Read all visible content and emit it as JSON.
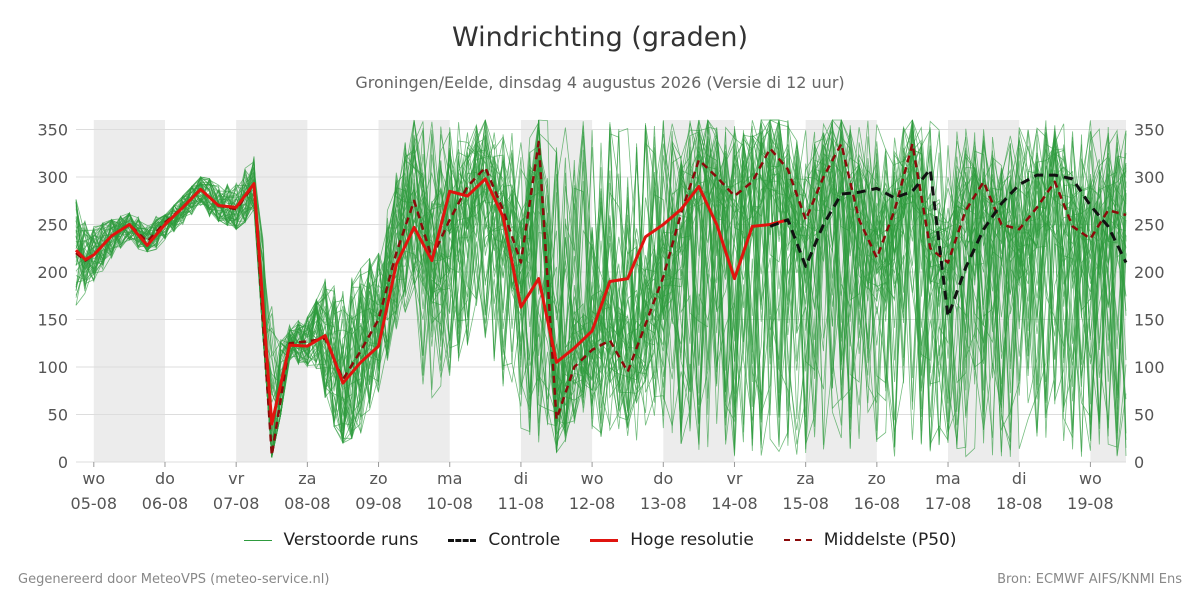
{
  "title": "Windrichting (graden)",
  "subtitle": "Groningen/Eelde, dinsdag  4 augustus 2026 (Versie di 12 uur)",
  "footer": {
    "left": "Gegenereerd door MeteoVPS (meteo-service.nl)",
    "right": "Bron: ECMWF AIFS/KNMI Ens"
  },
  "legend": {
    "ensemble": "Verstoorde runs",
    "control": "Controle",
    "highres": "Hoge resolutie",
    "median": "Middelste (P50)"
  },
  "colors": {
    "ensemble": "#2e9b3e",
    "control": "#111111",
    "highres": "#e0140f",
    "median": "#8b0a0a",
    "night_band": "#ececec",
    "grid": "#dddddd"
  },
  "chart_data": {
    "type": "line",
    "x_unit": "days since 5 Aug 2026 (tick = midnight start of day label)",
    "xlim": [
      -0.25,
      14.5
    ],
    "ylim": [
      0,
      360
    ],
    "yticks": [
      0,
      50,
      100,
      150,
      200,
      250,
      300,
      350
    ],
    "xticks": [
      {
        "x": 0,
        "day": "wo",
        "date": "05-08"
      },
      {
        "x": 1,
        "day": "do",
        "date": "06-08"
      },
      {
        "x": 2,
        "day": "vr",
        "date": "07-08"
      },
      {
        "x": 3,
        "day": "za",
        "date": "08-08"
      },
      {
        "x": 4,
        "day": "zo",
        "date": "09-08"
      },
      {
        "x": 5,
        "day": "ma",
        "date": "10-08"
      },
      {
        "x": 6,
        "day": "di",
        "date": "11-08"
      },
      {
        "x": 7,
        "day": "wo",
        "date": "12-08"
      },
      {
        "x": 8,
        "day": "do",
        "date": "13-08"
      },
      {
        "x": 9,
        "day": "vr",
        "date": "14-08"
      },
      {
        "x": 10,
        "day": "za",
        "date": "15-08"
      },
      {
        "x": 11,
        "day": "zo",
        "date": "16-08"
      },
      {
        "x": 12,
        "day": "ma",
        "date": "17-08"
      },
      {
        "x": 13,
        "day": "di",
        "date": "18-08"
      },
      {
        "x": 14,
        "day": "wo",
        "date": "19-08"
      }
    ],
    "shaded_bands": [
      [
        0,
        1
      ],
      [
        2,
        3
      ],
      [
        4,
        5
      ],
      [
        6,
        7
      ],
      [
        8,
        9
      ],
      [
        10,
        11
      ],
      [
        12,
        13
      ],
      [
        14,
        14.5
      ]
    ],
    "series": [
      {
        "name": "Hoge resolutie",
        "x": [
          -0.25,
          -0.12,
          0.0,
          0.25,
          0.5,
          0.75,
          1.0,
          1.25,
          1.5,
          1.75,
          2.0,
          2.25,
          2.5,
          2.75,
          3.0,
          3.25,
          3.5,
          3.75,
          4.0,
          4.25,
          4.5,
          4.75,
          5.0,
          5.25,
          5.5,
          5.75,
          6.0,
          6.25,
          6.5,
          6.75,
          7.0,
          7.25,
          7.5,
          7.75,
          8.0,
          8.25,
          8.5,
          8.75,
          9.0,
          9.25,
          9.5,
          9.75
        ],
        "y": [
          223,
          213,
          218,
          238,
          250,
          228,
          250,
          268,
          287,
          270,
          268,
          293,
          40,
          123,
          122,
          133,
          83,
          105,
          122,
          208,
          247,
          212,
          285,
          280,
          298,
          258,
          163,
          193,
          105,
          120,
          138,
          190,
          193,
          237,
          250,
          266,
          290,
          250,
          193,
          248,
          250,
          255
        ]
      },
      {
        "name": "Controle",
        "x": [
          9.5,
          9.75,
          10.0,
          10.25,
          10.5,
          10.75,
          11.0,
          11.25,
          11.5,
          11.75,
          12.0,
          12.25,
          12.5,
          12.75,
          13.0,
          13.25,
          13.5,
          13.75,
          14.0,
          14.25,
          14.5
        ],
        "y": [
          248,
          255,
          206,
          250,
          282,
          284,
          288,
          278,
          285,
          308,
          153,
          205,
          245,
          272,
          292,
          302,
          302,
          298,
          270,
          248,
          210
        ]
      },
      {
        "name": "Middelste (P50)",
        "x": [
          -0.25,
          -0.12,
          0.0,
          0.25,
          0.5,
          0.75,
          1.0,
          1.25,
          1.5,
          1.75,
          2.0,
          2.25,
          2.5,
          2.75,
          3.0,
          3.25,
          3.5,
          3.75,
          4.0,
          4.25,
          4.5,
          4.75,
          5.0,
          5.25,
          5.5,
          5.75,
          6.0,
          6.25,
          6.5,
          6.75,
          7.0,
          7.25,
          7.5,
          7.75,
          8.0,
          8.25,
          8.5,
          8.75,
          9.0,
          9.25,
          9.5,
          9.75,
          10.0,
          10.25,
          10.5,
          10.75,
          11.0,
          11.25,
          11.5,
          11.75,
          12.0,
          12.25,
          12.5,
          12.75,
          13.0,
          13.25,
          13.5,
          13.75,
          14.0,
          14.25,
          14.5
        ],
        "y": [
          220,
          212,
          218,
          238,
          250,
          232,
          252,
          268,
          287,
          270,
          266,
          292,
          7,
          125,
          127,
          130,
          87,
          117,
          150,
          220,
          275,
          215,
          255,
          290,
          310,
          265,
          210,
          337,
          45,
          100,
          118,
          128,
          95,
          145,
          195,
          262,
          318,
          300,
          280,
          295,
          330,
          308,
          255,
          300,
          335,
          255,
          215,
          265,
          335,
          225,
          210,
          265,
          295,
          250,
          245,
          268,
          295,
          248,
          235,
          265,
          260
        ]
      },
      {
        "name": "Verstoorde runs",
        "members": 50,
        "envelope_x": [
          -0.25,
          0.0,
          0.5,
          1.0,
          1.5,
          2.0,
          2.25,
          2.5,
          2.75,
          3.0,
          3.5,
          4.0,
          4.5,
          5.0,
          5.5,
          6.0,
          6.5,
          7.0,
          7.5,
          8.0,
          8.5,
          9.0,
          9.5,
          10.0,
          10.5,
          11.0,
          11.5,
          12.0,
          12.5,
          13.0,
          13.5,
          14.0,
          14.5
        ],
        "envelope_low": [
          165,
          180,
          225,
          218,
          262,
          245,
          260,
          5,
          95,
          90,
          20,
          40,
          45,
          90,
          130,
          20,
          10,
          30,
          15,
          20,
          10,
          5,
          5,
          5,
          5,
          5,
          5,
          5,
          5,
          5,
          5,
          5,
          5
        ],
        "envelope_high": [
          292,
          248,
          262,
          260,
          300,
          310,
          330,
          360,
          160,
          180,
          350,
          300,
          360,
          360,
          360,
          360,
          360,
          360,
          360,
          360,
          360,
          360,
          360,
          360,
          360,
          360,
          360,
          360,
          360,
          360,
          360,
          360,
          360
        ]
      }
    ]
  }
}
